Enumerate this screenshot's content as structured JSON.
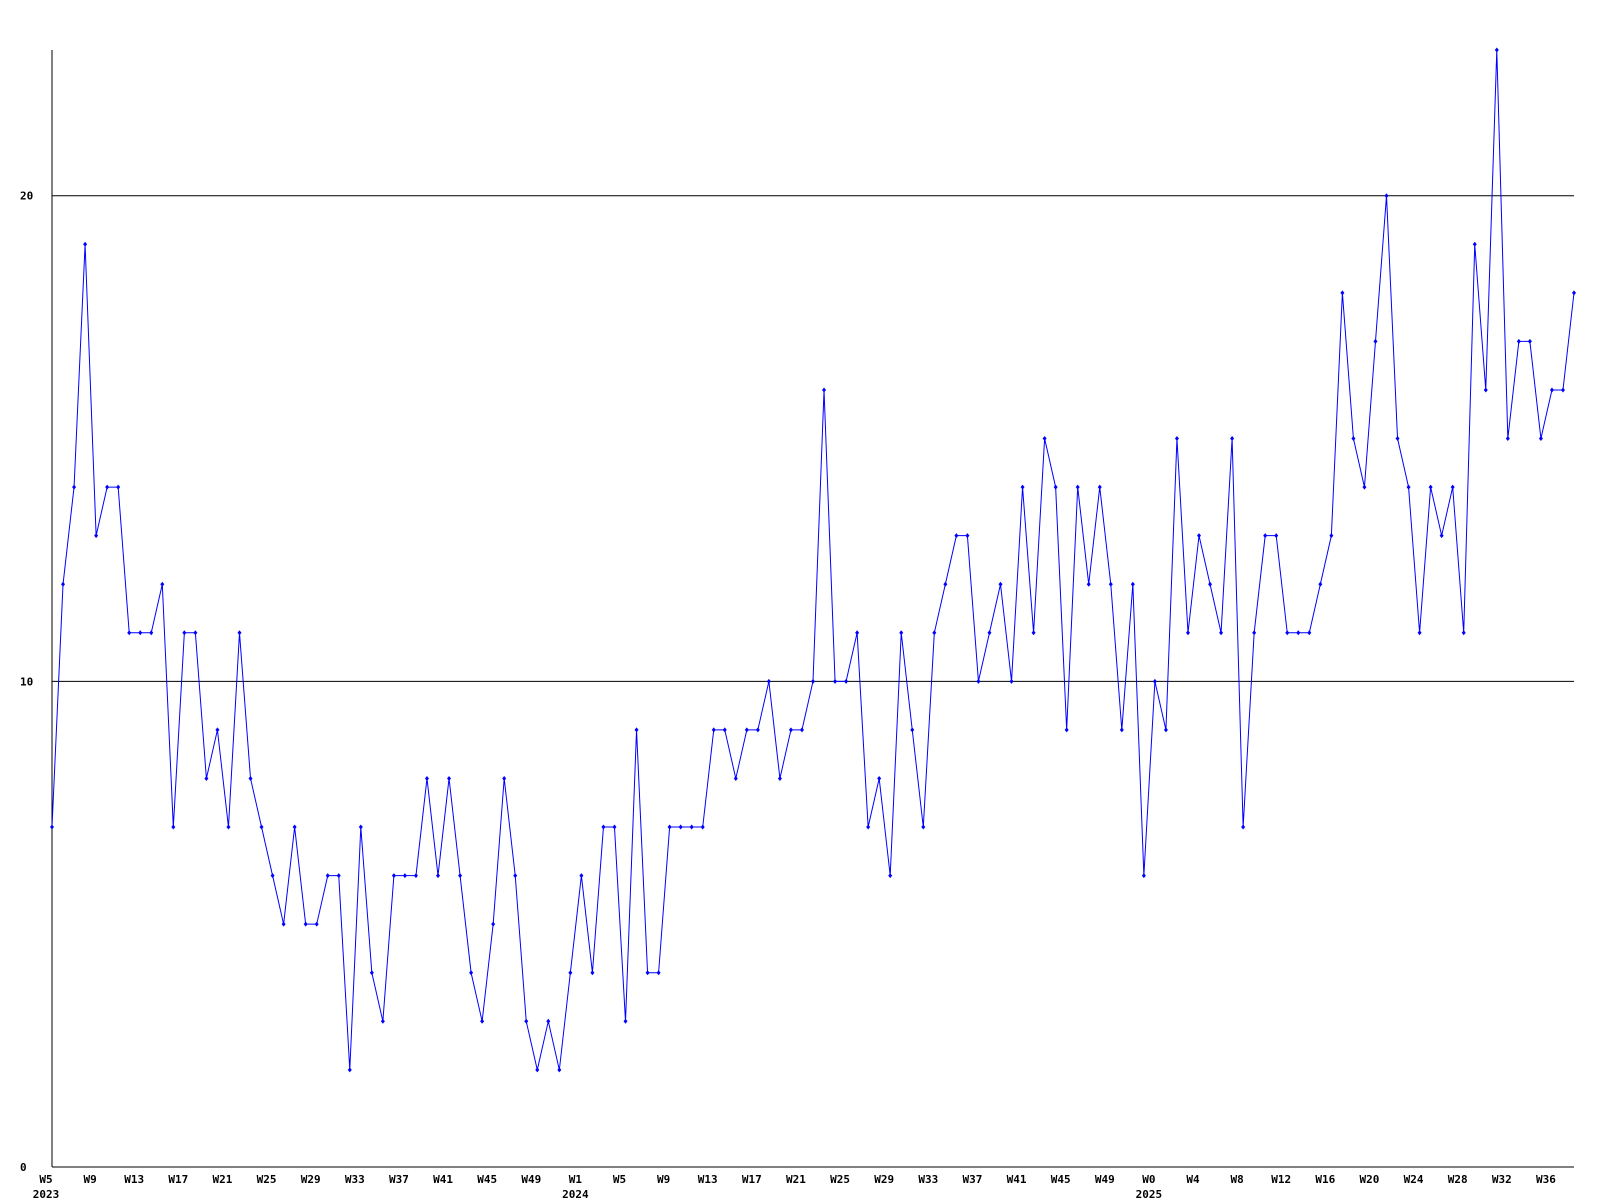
{
  "chart_data": {
    "type": "line",
    "categories": [
      [
        "W5",
        "2023"
      ],
      null,
      null,
      null,
      "W9",
      null,
      null,
      null,
      "W13",
      null,
      null,
      null,
      "W17",
      null,
      null,
      null,
      "W21",
      null,
      null,
      null,
      "W25",
      null,
      null,
      null,
      "W29",
      null,
      null,
      null,
      "W33",
      null,
      null,
      null,
      "W37",
      null,
      null,
      null,
      "W41",
      null,
      null,
      null,
      "W45",
      null,
      null,
      null,
      "W49",
      null,
      null,
      null,
      [
        "W1",
        "2024"
      ],
      null,
      null,
      null,
      "W5",
      null,
      null,
      null,
      "W9",
      null,
      null,
      null,
      "W13",
      null,
      null,
      null,
      "W17",
      null,
      null,
      null,
      "W21",
      null,
      null,
      null,
      "W25",
      null,
      null,
      null,
      "W29",
      null,
      null,
      null,
      "W33",
      null,
      null,
      null,
      "W37",
      null,
      null,
      null,
      "W41",
      null,
      null,
      null,
      "W45",
      null,
      null,
      null,
      "W49",
      null,
      null,
      null,
      [
        "W0",
        "2025"
      ],
      null,
      null,
      null,
      "W4",
      null,
      null,
      null,
      "W8",
      null,
      null,
      null,
      "W12",
      null,
      null,
      null,
      "W16",
      null,
      null,
      null,
      "W20",
      null,
      null,
      null,
      "W24",
      null,
      null,
      null,
      "W28",
      null,
      null,
      null,
      "W32",
      null,
      null,
      null,
      "W36",
      null,
      null
    ],
    "values": [
      7,
      12,
      14,
      19,
      13,
      14,
      14,
      11,
      11,
      11,
      12,
      7,
      11,
      11,
      8,
      9,
      7,
      11,
      8,
      7,
      6,
      5,
      7,
      5,
      5,
      6,
      6,
      2,
      7,
      4,
      3,
      6,
      6,
      6,
      8,
      6,
      8,
      6,
      4,
      3,
      5,
      8,
      6,
      3,
      2,
      3,
      2,
      4,
      6,
      4,
      7,
      7,
      3,
      9,
      4,
      4,
      7,
      7,
      7,
      7,
      9,
      9,
      8,
      9,
      9,
      10,
      8,
      9,
      9,
      10,
      16,
      10,
      10,
      11,
      7,
      8,
      6,
      11,
      9,
      7,
      11,
      12,
      13,
      13,
      10,
      11,
      12,
      10,
      14,
      11,
      15,
      14,
      9,
      14,
      12,
      14,
      12,
      9,
      12,
      6,
      10,
      9,
      15,
      11,
      13,
      12,
      11,
      15,
      7,
      11,
      13,
      13,
      11,
      11,
      11,
      12,
      13,
      18,
      15,
      14,
      17,
      20,
      15,
      14,
      11,
      14,
      13,
      14,
      11,
      19,
      16,
      23,
      15,
      17,
      17,
      15,
      16,
      16,
      18
    ],
    "color": "#0000ff",
    "ylim": [
      0,
      23
    ],
    "yticks": [
      0,
      10,
      20
    ],
    "grid": true
  }
}
